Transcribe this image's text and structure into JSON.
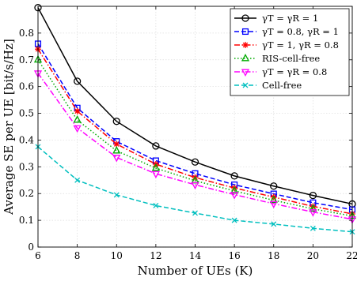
{
  "chart_data": {
    "type": "line",
    "title": "",
    "xlabel": "Number of UEs (K)",
    "ylabel": "Average SE per UE [bit/s/Hz]",
    "x": [
      6,
      8,
      10,
      12,
      14,
      16,
      18,
      20,
      22
    ],
    "xlim": [
      6,
      22
    ],
    "ylim": [
      0,
      0.9
    ],
    "xticks": [
      6,
      8,
      10,
      12,
      14,
      16,
      18,
      20,
      22
    ],
    "yticks": [
      0,
      0.1,
      0.2,
      0.3,
      0.4,
      0.5,
      0.6,
      0.7,
      0.8
    ],
    "grid": true,
    "legend_position": "top-right",
    "series": [
      {
        "name": "γT = γR = 1",
        "color": "#000000",
        "line_style": "solid",
        "marker": "circle",
        "values": [
          0.895,
          0.62,
          0.47,
          0.378,
          0.318,
          0.266,
          0.228,
          0.193,
          0.161
        ]
      },
      {
        "name": "γT = 0.8, γR = 1",
        "color": "#0000ff",
        "line_style": "dashed",
        "marker": "square",
        "values": [
          0.76,
          0.52,
          0.395,
          0.323,
          0.275,
          0.233,
          0.199,
          0.166,
          0.14
        ]
      },
      {
        "name": "γT = 1, γR = 0.8",
        "color": "#ff0000",
        "line_style": "dashdot",
        "marker": "star",
        "values": [
          0.74,
          0.508,
          0.385,
          0.31,
          0.26,
          0.221,
          0.187,
          0.152,
          0.124
        ]
      },
      {
        "name": "RIS-cell-free",
        "color": "#00aa00",
        "line_style": "dotted",
        "marker": "triangle-up",
        "values": [
          0.7,
          0.475,
          0.36,
          0.295,
          0.248,
          0.21,
          0.175,
          0.143,
          0.116
        ]
      },
      {
        "name": "γT = γR = 0.8",
        "color": "#ff00ff",
        "line_style": "dashdot",
        "marker": "triangle-down",
        "values": [
          0.65,
          0.445,
          0.335,
          0.274,
          0.233,
          0.196,
          0.162,
          0.131,
          0.104
        ]
      },
      {
        "name": "Cell-free",
        "color": "#00bfbf",
        "line_style": "dashed",
        "marker": "x",
        "values": [
          0.375,
          0.25,
          0.195,
          0.155,
          0.127,
          0.1,
          0.086,
          0.07,
          0.057
        ]
      }
    ]
  }
}
